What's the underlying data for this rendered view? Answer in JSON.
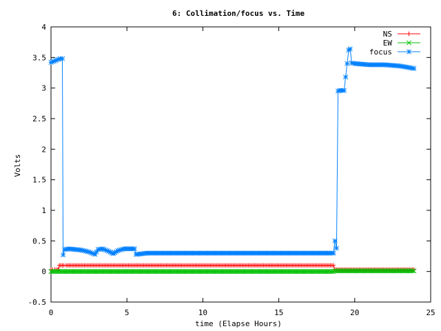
{
  "chart_data": {
    "type": "line",
    "title": "6: Collimation/focus vs. Time",
    "xlabel": "time (Elapse Hours)",
    "ylabel": "Volts",
    "xlim": [
      0,
      25
    ],
    "ylim": [
      -0.5,
      4
    ],
    "xticks": [
      0,
      5,
      10,
      15,
      20,
      25
    ],
    "xtick_labels": [
      "0",
      "5",
      "10",
      "15",
      "20",
      "25"
    ],
    "yticks": [
      -0.5,
      0,
      0.5,
      1,
      1.5,
      2,
      2.5,
      3,
      3.5,
      4
    ],
    "ytick_labels": [
      "-0.5",
      "0",
      "0.5",
      "1",
      "1.5",
      "2",
      "2.5",
      "3",
      "3.5",
      "4"
    ],
    "grid": false,
    "legend_position": "top-right",
    "series": [
      {
        "name": "NS",
        "color": "#ff0000",
        "marker": "plus",
        "points": [
          [
            0.0,
            0.03
          ],
          [
            0.25,
            0.03
          ],
          [
            0.5,
            0.03
          ],
          [
            0.55,
            0.1
          ],
          [
            1.0,
            0.1
          ],
          [
            5.0,
            0.1
          ],
          [
            10.0,
            0.1
          ],
          [
            15.0,
            0.1
          ],
          [
            18.5,
            0.1
          ],
          [
            18.6,
            0.1
          ],
          [
            18.7,
            0.03
          ],
          [
            19.0,
            0.03
          ],
          [
            20.0,
            0.03
          ],
          [
            22.0,
            0.03
          ],
          [
            23.9,
            0.03
          ]
        ]
      },
      {
        "name": "EW",
        "color": "#00c000",
        "marker": "cross",
        "points": [
          [
            0.0,
            0.0
          ],
          [
            5.0,
            0.0
          ],
          [
            10.0,
            0.0
          ],
          [
            15.0,
            0.0
          ],
          [
            18.6,
            0.0
          ],
          [
            18.7,
            0.01
          ],
          [
            20.0,
            0.01
          ],
          [
            23.9,
            0.01
          ]
        ]
      },
      {
        "name": "focus",
        "color": "#0080ff",
        "marker": "star",
        "points": [
          [
            0.0,
            3.42
          ],
          [
            0.2,
            3.44
          ],
          [
            0.4,
            3.46
          ],
          [
            0.6,
            3.48
          ],
          [
            0.75,
            3.48
          ],
          [
            0.8,
            0.27
          ],
          [
            0.9,
            0.36
          ],
          [
            1.2,
            0.37
          ],
          [
            2.0,
            0.35
          ],
          [
            2.5,
            0.32
          ],
          [
            2.9,
            0.28
          ],
          [
            3.1,
            0.36
          ],
          [
            3.4,
            0.37
          ],
          [
            3.8,
            0.33
          ],
          [
            4.1,
            0.29
          ],
          [
            4.4,
            0.34
          ],
          [
            4.8,
            0.37
          ],
          [
            5.5,
            0.37
          ],
          [
            5.6,
            0.28
          ],
          [
            6.0,
            0.29
          ],
          [
            6.3,
            0.3
          ],
          [
            10.0,
            0.3
          ],
          [
            15.0,
            0.3
          ],
          [
            18.6,
            0.3
          ],
          [
            18.7,
            0.5
          ],
          [
            18.8,
            0.38
          ],
          [
            18.9,
            2.95
          ],
          [
            19.0,
            2.96
          ],
          [
            19.3,
            2.96
          ],
          [
            19.6,
            3.62
          ],
          [
            19.7,
            3.64
          ],
          [
            19.8,
            3.41
          ],
          [
            20.0,
            3.4
          ],
          [
            21.0,
            3.38
          ],
          [
            22.0,
            3.38
          ],
          [
            23.0,
            3.36
          ],
          [
            23.9,
            3.32
          ]
        ]
      }
    ]
  }
}
